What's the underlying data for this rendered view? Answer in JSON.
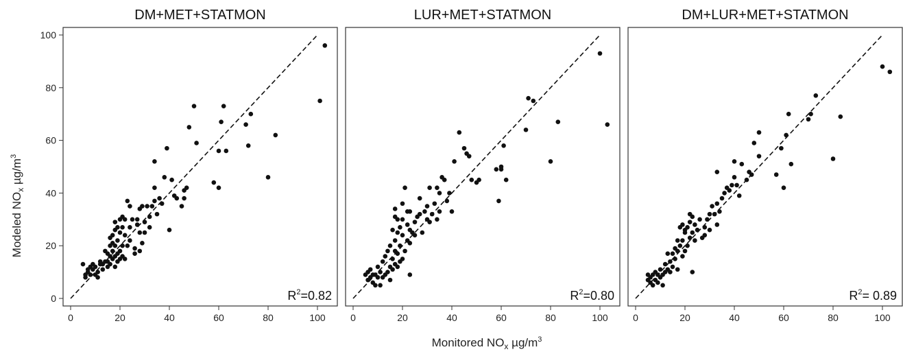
{
  "figure": {
    "xlabel_main": "Monitored NO",
    "xlabel_sub": "x",
    "xlabel_units": " µg/m",
    "xlabel_sup": "3",
    "ylabel_main": "Modeled NO",
    "ylabel_sub": "x",
    "ylabel_units": " µg/m",
    "ylabel_sup": "3"
  },
  "chart_data": [
    {
      "type": "scatter",
      "title": "DM+MET+STATMON",
      "r2_prefix": "R",
      "r2_sup": "2",
      "r2_value": "=0.82",
      "xlim": [
        0,
        105
      ],
      "ylim": [
        0,
        100
      ],
      "xticks": [
        0,
        20,
        40,
        60,
        80,
        100
      ],
      "yticks": [
        0,
        20,
        40,
        60,
        80,
        100
      ],
      "reference_line": "1:1 dashed",
      "points": [
        [
          5,
          13
        ],
        [
          6,
          9
        ],
        [
          6,
          8
        ],
        [
          7,
          11
        ],
        [
          7,
          10
        ],
        [
          8,
          9
        ],
        [
          8,
          12
        ],
        [
          9,
          11
        ],
        [
          9,
          13
        ],
        [
          10,
          9
        ],
        [
          10,
          12
        ],
        [
          11,
          8
        ],
        [
          11,
          10
        ],
        [
          12,
          13
        ],
        [
          12,
          14
        ],
        [
          13,
          11
        ],
        [
          13,
          13
        ],
        [
          14,
          14
        ],
        [
          14,
          18
        ],
        [
          15,
          12
        ],
        [
          15,
          14
        ],
        [
          15,
          17
        ],
        [
          16,
          13
        ],
        [
          16,
          16
        ],
        [
          16,
          20
        ],
        [
          16,
          23
        ],
        [
          17,
          15
        ],
        [
          17,
          18
        ],
        [
          17,
          21
        ],
        [
          17,
          24
        ],
        [
          18,
          12
        ],
        [
          18,
          16
        ],
        [
          18,
          20
        ],
        [
          18,
          26
        ],
        [
          18,
          29
        ],
        [
          19,
          14
        ],
        [
          19,
          17
        ],
        [
          19,
          22
        ],
        [
          19,
          27
        ],
        [
          20,
          15
        ],
        [
          20,
          18
        ],
        [
          20,
          25
        ],
        [
          20,
          30
        ],
        [
          21,
          16
        ],
        [
          21,
          20
        ],
        [
          21,
          27
        ],
        [
          21,
          31
        ],
        [
          22,
          15
        ],
        [
          22,
          24
        ],
        [
          22,
          30
        ],
        [
          23,
          20
        ],
        [
          23,
          37
        ],
        [
          24,
          22
        ],
        [
          24,
          27
        ],
        [
          24,
          35
        ],
        [
          25,
          30
        ],
        [
          26,
          17
        ],
        [
          26,
          19
        ],
        [
          27,
          28
        ],
        [
          27,
          30
        ],
        [
          28,
          18
        ],
        [
          28,
          25
        ],
        [
          28,
          34
        ],
        [
          29,
          21
        ],
        [
          29,
          35
        ],
        [
          30,
          25
        ],
        [
          30,
          29
        ],
        [
          31,
          35
        ],
        [
          32,
          27
        ],
        [
          32,
          31
        ],
        [
          33,
          35
        ],
        [
          34,
          37
        ],
        [
          34,
          42
        ],
        [
          34,
          52
        ],
        [
          35,
          32
        ],
        [
          36,
          38
        ],
        [
          37,
          36
        ],
        [
          38,
          46
        ],
        [
          39,
          57
        ],
        [
          40,
          26
        ],
        [
          41,
          45
        ],
        [
          42,
          39
        ],
        [
          43,
          38
        ],
        [
          45,
          35
        ],
        [
          46,
          38
        ],
        [
          46,
          41
        ],
        [
          47,
          42
        ],
        [
          48,
          65
        ],
        [
          50,
          73
        ],
        [
          51,
          59
        ],
        [
          58,
          44
        ],
        [
          60,
          42
        ],
        [
          60,
          56
        ],
        [
          61,
          67
        ],
        [
          62,
          73
        ],
        [
          63,
          56
        ],
        [
          71,
          66
        ],
        [
          72,
          58
        ],
        [
          73,
          70
        ],
        [
          80,
          46
        ],
        [
          83,
          62
        ],
        [
          101,
          75
        ],
        [
          103,
          96
        ]
      ]
    },
    {
      "type": "scatter",
      "title": "LUR+MET+STATMON",
      "r2_prefix": "R",
      "r2_sup": "2",
      "r2_value": "=0.80",
      "xlim": [
        0,
        105
      ],
      "ylim": [
        0,
        100
      ],
      "xticks": [
        0,
        20,
        40,
        60,
        80,
        100
      ],
      "yticks": [
        0,
        20,
        40,
        60,
        80,
        100
      ],
      "reference_line": "1:1 dashed",
      "points": [
        [
          5,
          9
        ],
        [
          6,
          10
        ],
        [
          6,
          7
        ],
        [
          7,
          8
        ],
        [
          7,
          11
        ],
        [
          8,
          6
        ],
        [
          8,
          9
        ],
        [
          9,
          5
        ],
        [
          9,
          9
        ],
        [
          10,
          8
        ],
        [
          10,
          12
        ],
        [
          11,
          5
        ],
        [
          11,
          10
        ],
        [
          12,
          8
        ],
        [
          12,
          14
        ],
        [
          13,
          9
        ],
        [
          13,
          16
        ],
        [
          14,
          10
        ],
        [
          14,
          18
        ],
        [
          15,
          7
        ],
        [
          15,
          12
        ],
        [
          15,
          20
        ],
        [
          16,
          11
        ],
        [
          16,
          15
        ],
        [
          16,
          26
        ],
        [
          17,
          13
        ],
        [
          17,
          18
        ],
        [
          17,
          22
        ],
        [
          17,
          31
        ],
        [
          17,
          34
        ],
        [
          18,
          12
        ],
        [
          18,
          17
        ],
        [
          18,
          25
        ],
        [
          18,
          30
        ],
        [
          19,
          14
        ],
        [
          19,
          20
        ],
        [
          19,
          27
        ],
        [
          20,
          15
        ],
        [
          20,
          24
        ],
        [
          20,
          30
        ],
        [
          20,
          36
        ],
        [
          21,
          18
        ],
        [
          21,
          42
        ],
        [
          22,
          22
        ],
        [
          22,
          28
        ],
        [
          22,
          33
        ],
        [
          23,
          9
        ],
        [
          23,
          21
        ],
        [
          23,
          26
        ],
        [
          23,
          33
        ],
        [
          24,
          25
        ],
        [
          25,
          24
        ],
        [
          25,
          29
        ],
        [
          26,
          31
        ],
        [
          27,
          32
        ],
        [
          27,
          38
        ],
        [
          28,
          25
        ],
        [
          29,
          33
        ],
        [
          30,
          30
        ],
        [
          30,
          35
        ],
        [
          31,
          29
        ],
        [
          31,
          42
        ],
        [
          32,
          32
        ],
        [
          33,
          36
        ],
        [
          34,
          30
        ],
        [
          34,
          42
        ],
        [
          35,
          33
        ],
        [
          35,
          40
        ],
        [
          36,
          46
        ],
        [
          37,
          45
        ],
        [
          38,
          37
        ],
        [
          39,
          40
        ],
        [
          40,
          33
        ],
        [
          41,
          52
        ],
        [
          43,
          63
        ],
        [
          45,
          57
        ],
        [
          46,
          55
        ],
        [
          47,
          54
        ],
        [
          48,
          45
        ],
        [
          50,
          44
        ],
        [
          51,
          45
        ],
        [
          58,
          49
        ],
        [
          59,
          37
        ],
        [
          60,
          49
        ],
        [
          60,
          50
        ],
        [
          61,
          58
        ],
        [
          62,
          45
        ],
        [
          70,
          64
        ],
        [
          71,
          76
        ],
        [
          73,
          75
        ],
        [
          80,
          52
        ],
        [
          83,
          67
        ],
        [
          100,
          93
        ],
        [
          103,
          66
        ]
      ]
    },
    {
      "type": "scatter",
      "title": "DM+LUR+MET+STATMON",
      "r2_prefix": "R",
      "r2_sup": "2",
      "r2_value": "= 0.89",
      "xlim": [
        0,
        105
      ],
      "ylim": [
        0,
        100
      ],
      "xticks": [
        0,
        20,
        40,
        60,
        80,
        100
      ],
      "yticks": [
        0,
        20,
        40,
        60,
        80,
        100
      ],
      "reference_line": "1:1 dashed",
      "points": [
        [
          5,
          9
        ],
        [
          5,
          7
        ],
        [
          6,
          6
        ],
        [
          6,
          8
        ],
        [
          7,
          9
        ],
        [
          7,
          5
        ],
        [
          8,
          7
        ],
        [
          8,
          10
        ],
        [
          9,
          9
        ],
        [
          9,
          6
        ],
        [
          10,
          8
        ],
        [
          10,
          11
        ],
        [
          11,
          5
        ],
        [
          11,
          9
        ],
        [
          12,
          10
        ],
        [
          12,
          13
        ],
        [
          13,
          11
        ],
        [
          13,
          17
        ],
        [
          14,
          10
        ],
        [
          14,
          14
        ],
        [
          15,
          12
        ],
        [
          15,
          17
        ],
        [
          16,
          15
        ],
        [
          16,
          19
        ],
        [
          17,
          11
        ],
        [
          17,
          18
        ],
        [
          17,
          22
        ],
        [
          18,
          20
        ],
        [
          18,
          27
        ],
        [
          19,
          16
        ],
        [
          19,
          22
        ],
        [
          19,
          28
        ],
        [
          20,
          18
        ],
        [
          20,
          25
        ],
        [
          20,
          26
        ],
        [
          21,
          20
        ],
        [
          21,
          27
        ],
        [
          22,
          23
        ],
        [
          22,
          29
        ],
        [
          22,
          32
        ],
        [
          23,
          10
        ],
        [
          23,
          25
        ],
        [
          23,
          31
        ],
        [
          24,
          22
        ],
        [
          24,
          28
        ],
        [
          25,
          26
        ],
        [
          26,
          30
        ],
        [
          27,
          23
        ],
        [
          28,
          24
        ],
        [
          28,
          27
        ],
        [
          29,
          30
        ],
        [
          30,
          26
        ],
        [
          30,
          32
        ],
        [
          31,
          35
        ],
        [
          32,
          32
        ],
        [
          33,
          28
        ],
        [
          33,
          36
        ],
        [
          33,
          48
        ],
        [
          34,
          33
        ],
        [
          35,
          38
        ],
        [
          36,
          40
        ],
        [
          37,
          42
        ],
        [
          38,
          41
        ],
        [
          39,
          43
        ],
        [
          40,
          46
        ],
        [
          40,
          52
        ],
        [
          41,
          43
        ],
        [
          42,
          39
        ],
        [
          43,
          51
        ],
        [
          45,
          45
        ],
        [
          46,
          48
        ],
        [
          47,
          47
        ],
        [
          48,
          59
        ],
        [
          50,
          54
        ],
        [
          50,
          63
        ],
        [
          57,
          47
        ],
        [
          59,
          57
        ],
        [
          60,
          42
        ],
        [
          61,
          62
        ],
        [
          62,
          70
        ],
        [
          63,
          51
        ],
        [
          70,
          68
        ],
        [
          71,
          70
        ],
        [
          73,
          77
        ],
        [
          80,
          53
        ],
        [
          83,
          69
        ],
        [
          100,
          88
        ],
        [
          103,
          86
        ]
      ]
    }
  ]
}
